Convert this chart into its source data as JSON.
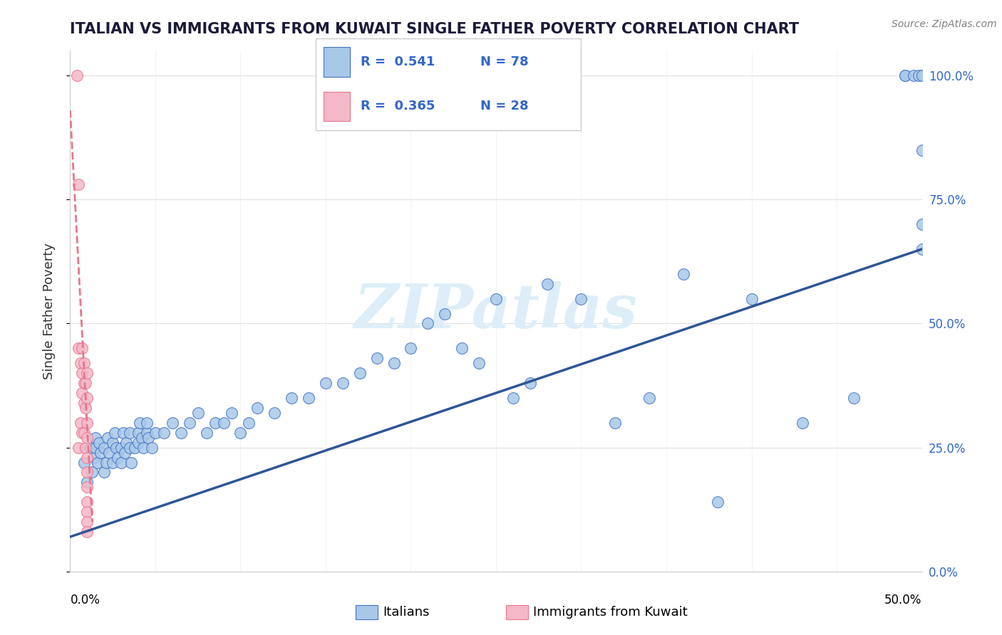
{
  "title": "ITALIAN VS IMMIGRANTS FROM KUWAIT SINGLE FATHER POVERTY CORRELATION CHART",
  "source": "Source: ZipAtlas.com",
  "ylabel": "Single Father Poverty",
  "legend_blue_R": "0.541",
  "legend_blue_N": "78",
  "legend_pink_R": "0.365",
  "legend_pink_N": "28",
  "blue_color": "#a8c8e8",
  "blue_edge_color": "#4472c4",
  "pink_color": "#f4b8c8",
  "pink_edge_color": "#e8758a",
  "blue_line_color": "#2f5597",
  "pink_line_color": "#e8758a",
  "watermark": "ZIPatlas",
  "watermark_color": "#ddeef8",
  "xlim": [
    0.0,
    0.5
  ],
  "ylim": [
    0.0,
    1.05
  ],
  "blue_scatter_x": [
    0.008,
    0.01,
    0.012,
    0.013,
    0.014,
    0.015,
    0.015,
    0.016,
    0.017,
    0.018,
    0.02,
    0.02,
    0.021,
    0.022,
    0.023,
    0.025,
    0.025,
    0.026,
    0.027,
    0.028,
    0.03,
    0.03,
    0.031,
    0.032,
    0.033,
    0.035,
    0.035,
    0.036,
    0.038,
    0.04,
    0.04,
    0.041,
    0.042,
    0.043,
    0.045,
    0.045,
    0.046,
    0.048,
    0.05,
    0.055,
    0.06,
    0.065,
    0.07,
    0.075,
    0.08,
    0.085,
    0.09,
    0.095,
    0.1,
    0.105,
    0.11,
    0.12,
    0.13,
    0.14,
    0.15,
    0.16,
    0.17,
    0.18,
    0.19,
    0.2,
    0.21,
    0.22,
    0.23,
    0.24,
    0.25,
    0.26,
    0.27,
    0.28,
    0.3,
    0.32,
    0.34,
    0.36,
    0.38,
    0.4,
    0.43,
    0.46,
    0.49,
    0.5
  ],
  "blue_scatter_y": [
    0.22,
    0.18,
    0.25,
    0.2,
    0.23,
    0.25,
    0.27,
    0.22,
    0.26,
    0.24,
    0.2,
    0.25,
    0.22,
    0.27,
    0.24,
    0.22,
    0.26,
    0.28,
    0.25,
    0.23,
    0.22,
    0.25,
    0.28,
    0.24,
    0.26,
    0.28,
    0.25,
    0.22,
    0.25,
    0.26,
    0.28,
    0.3,
    0.27,
    0.25,
    0.28,
    0.3,
    0.27,
    0.25,
    0.28,
    0.28,
    0.3,
    0.28,
    0.3,
    0.32,
    0.28,
    0.3,
    0.3,
    0.32,
    0.28,
    0.3,
    0.33,
    0.32,
    0.35,
    0.35,
    0.38,
    0.38,
    0.4,
    0.43,
    0.42,
    0.45,
    0.5,
    0.52,
    0.45,
    0.42,
    0.55,
    0.35,
    0.38,
    0.58,
    0.55,
    0.3,
    0.35,
    0.6,
    0.14,
    0.55,
    0.3,
    0.35,
    1.0,
    0.65
  ],
  "blue_scatter_x2": [
    0.49,
    0.495,
    0.498,
    0.5,
    0.5,
    0.5
  ],
  "blue_scatter_y2": [
    1.0,
    1.0,
    1.0,
    1.0,
    0.85,
    0.7
  ],
  "pink_scatter_x": [
    0.004,
    0.005,
    0.005,
    0.005,
    0.006,
    0.006,
    0.007,
    0.007,
    0.007,
    0.007,
    0.008,
    0.008,
    0.008,
    0.008,
    0.009,
    0.009,
    0.009,
    0.01,
    0.01,
    0.01,
    0.01,
    0.01,
    0.01,
    0.01,
    0.01,
    0.01,
    0.01,
    0.01
  ],
  "pink_scatter_y": [
    1.0,
    0.78,
    0.45,
    0.25,
    0.42,
    0.3,
    0.45,
    0.4,
    0.36,
    0.28,
    0.42,
    0.38,
    0.34,
    0.28,
    0.38,
    0.33,
    0.25,
    0.4,
    0.35,
    0.3,
    0.27,
    0.23,
    0.2,
    0.17,
    0.14,
    0.12,
    0.1,
    0.08
  ],
  "blue_line_x": [
    0.0,
    0.5
  ],
  "blue_line_y": [
    0.07,
    0.65
  ],
  "pink_line_x": [
    0.0,
    0.013
  ],
  "pink_line_y": [
    0.93,
    0.1
  ]
}
